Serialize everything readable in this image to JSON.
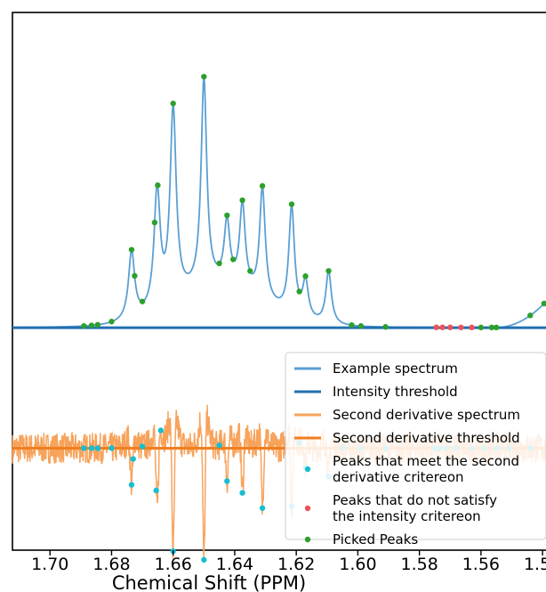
{
  "chart_data": {
    "type": "line",
    "xlabel": "Chemical Shift (PPM)",
    "x_ticks": [
      1.7,
      1.68,
      1.66,
      1.64,
      1.62,
      1.6,
      1.58,
      1.56,
      1.54
    ],
    "x_tick_labels": [
      "1.70",
      "1.68",
      "1.66",
      "1.64",
      "1.62",
      "1.60",
      "1.58",
      "1.56",
      "1.54"
    ],
    "xlim": [
      1.7122,
      1.5383
    ],
    "x_reversed": true,
    "legend_position": "lower-right",
    "legend": [
      {
        "label": "Example spectrum",
        "kind": "line",
        "color": "#5b9fd3"
      },
      {
        "label": "Intensity threshold",
        "kind": "line",
        "color": "#1f6fb2"
      },
      {
        "label": "Second derivative spectrum",
        "kind": "line",
        "color": "#f7a35c"
      },
      {
        "label": "Second derivative threshold",
        "kind": "line",
        "color": "#f07f1f"
      },
      {
        "label": "Peaks that meet the second derivative critereon",
        "lines": [
          "Peaks that meet the second",
          "derivative critereon"
        ],
        "kind": "dot",
        "color": "#17becf"
      },
      {
        "label": "Peaks that do not satisfy the intensity critereon",
        "lines": [
          "Peaks that do not satisfy",
          "the intensity critereon"
        ],
        "kind": "dot",
        "color": "#e8555a"
      },
      {
        "label": "Picked Peaks",
        "kind": "dot",
        "color": "#2ca02c"
      }
    ],
    "colors": {
      "spectrum": "#5b9fd3",
      "intensity_threshold": "#1f6fb2",
      "second_derivative": "#f7a35c",
      "second_derivative_threshold": "#f07f1f",
      "meet_criterion": "#17becf",
      "fail_intensity": "#e8555a",
      "picked": "#2ca02c"
    },
    "spectrum": {
      "baseline": 0,
      "threshold": 0,
      "ylim": [
        -0.72,
        1.02
      ],
      "peaks": [
        {
          "center": 1.6735,
          "amp": 0.22,
          "width": 0.0012
        },
        {
          "center": 1.6652,
          "amp": 0.38,
          "width": 0.0012
        },
        {
          "center": 1.66,
          "amp": 0.62,
          "width": 0.0012
        },
        {
          "center": 1.65,
          "amp": 0.67,
          "width": 0.0011
        },
        {
          "center": 1.6425,
          "amp": 0.2,
          "width": 0.0011
        },
        {
          "center": 1.6375,
          "amp": 0.27,
          "width": 0.0011
        },
        {
          "center": 1.631,
          "amp": 0.36,
          "width": 0.0011
        },
        {
          "center": 1.6215,
          "amp": 0.35,
          "width": 0.0011
        },
        {
          "center": 1.617,
          "amp": 0.12,
          "width": 0.0011
        },
        {
          "center": 1.6095,
          "amp": 0.17,
          "width": 0.0011
        }
      ],
      "envelope": {
        "center": 1.645,
        "amp": 0.13,
        "width": 0.02
      },
      "tail": {
        "start": 1.555,
        "end": 1.5383,
        "amp": 0.09
      }
    },
    "second_derivative": {
      "offset": -0.39,
      "threshold": -0.39,
      "noise": 0.05,
      "scale": 0.27
    },
    "meet_criterion_x": [
      1.689,
      1.6865,
      1.6845,
      1.68,
      1.6735,
      1.673,
      1.67,
      1.6655,
      1.664,
      1.66,
      1.65,
      1.645,
      1.6425,
      1.6375,
      1.631,
      1.6215,
      1.619,
      1.617,
      1.6095,
      1.605,
      1.599,
      1.591,
      1.575,
      1.5735,
      1.571,
      1.568,
      1.563,
      1.559,
      1.555,
      1.551,
      1.544
    ],
    "fail_intensity_x": [
      1.5745,
      1.5725,
      1.57,
      1.5665,
      1.563
    ],
    "picked_x": [
      1.689,
      1.6865,
      1.6845,
      1.68,
      1.6735,
      1.6725,
      1.67,
      1.666,
      1.665,
      1.66,
      1.65,
      1.645,
      1.6425,
      1.6405,
      1.6375,
      1.635,
      1.631,
      1.6215,
      1.619,
      1.617,
      1.6095,
      1.602,
      1.599,
      1.591,
      1.56,
      1.5565,
      1.555,
      1.544,
      1.5395
    ]
  }
}
